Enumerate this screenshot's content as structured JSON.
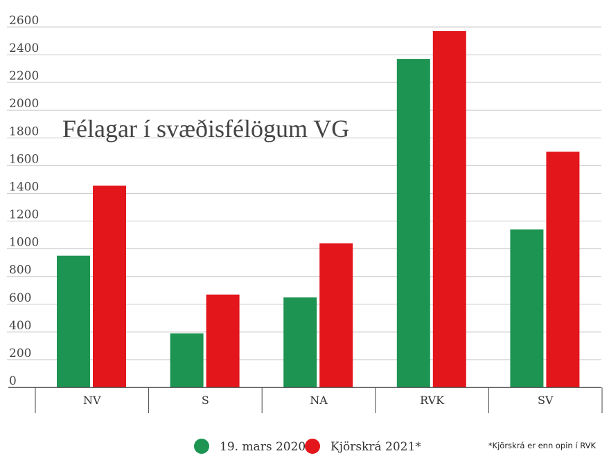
{
  "chart_data": {
    "type": "bar",
    "title": "Félagar í svæðisfélögum VG",
    "categories": [
      "NV",
      "S",
      "NA",
      "RVK",
      "SV"
    ],
    "series": [
      {
        "name": "19. mars 2020",
        "color": "#1d9452",
        "values": [
          950,
          390,
          650,
          2370,
          1140
        ]
      },
      {
        "name": "Kjörskrá 2021*",
        "color": "#e3161c",
        "values": [
          1455,
          670,
          1040,
          2570,
          1700
        ]
      }
    ],
    "ylim": [
      0,
      2600
    ],
    "yticks": [
      0,
      200,
      400,
      600,
      800,
      1000,
      1200,
      1400,
      1600,
      1800,
      2000,
      2200,
      2400,
      2600
    ],
    "grid": true,
    "legend": "bottom-center",
    "footnote": "*Kjörskrá er enn opin í RVK"
  }
}
